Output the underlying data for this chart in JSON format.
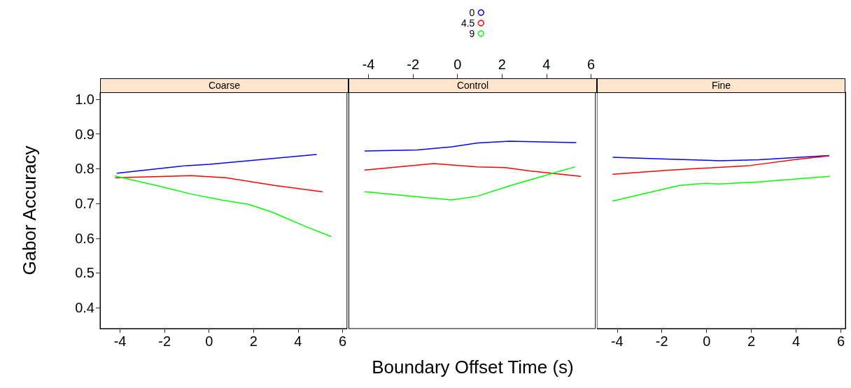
{
  "chart_data": [
    {
      "type": "line",
      "title": "Coarse",
      "ylabel": "Gabor Accuracy",
      "xlim": [
        -4.9,
        6.2
      ],
      "xticks": [
        -4,
        -2,
        0,
        2,
        4,
        6
      ],
      "ylim": [
        0.34,
        1.02
      ],
      "yticks": [
        0.4,
        0.5,
        0.6,
        0.7,
        0.8,
        0.9,
        {
          "value": 1,
          "label": "1.0"
        }
      ],
      "grid": false,
      "marker": "none",
      "series": [
        {
          "color": "#0000ff",
          "x": [
            -4.13,
            -1.0,
            0.03,
            4.82
          ],
          "values": [
            0.787,
            0.809,
            0.813,
            0.841
          ]
        },
        {
          "color": "#ff0000",
          "x": [
            -4.2,
            -0.8,
            0.76,
            2.95,
            5.08
          ],
          "values": [
            0.774,
            0.78,
            0.774,
            0.752,
            0.734
          ]
        },
        {
          "color": "#00ff00",
          "x": [
            -4.22,
            -2.05,
            -0.8,
            0.55,
            1.8,
            2.84,
            4.41,
            5.48
          ],
          "values": [
            0.779,
            0.747,
            0.727,
            0.71,
            0.697,
            0.675,
            0.632,
            0.605
          ]
        }
      ]
    },
    {
      "type": "line",
      "title": "Control",
      "xlabel": "Boundary Offset Time (s)",
      "xlim": [
        -4.9,
        6.2
      ],
      "xticks": [
        -4,
        -2,
        0,
        2,
        4,
        6
      ],
      "ylim": [
        0.34,
        1.02
      ],
      "tick_labels": "x",
      "grid": false,
      "marker": "none",
      "legend": "top",
      "series": [
        {
          "name": "0",
          "color": "#0000ff",
          "x": [
            -4.16,
            -1.81,
            -0.25,
            0.9,
            2.35,
            5.32
          ],
          "values": [
            0.851,
            0.854,
            0.863,
            0.874,
            0.879,
            0.875
          ]
        },
        {
          "name": "4.5",
          "color": "#ff0000",
          "x": [
            -4.16,
            -1.08,
            0.9,
            2.15,
            3.19,
            5.53
          ],
          "values": [
            0.796,
            0.815,
            0.805,
            0.803,
            0.794,
            0.778
          ]
        },
        {
          "name": "9",
          "color": "#00ff00",
          "x": [
            -4.16,
            -1.81,
            -0.25,
            0.9,
            2.35,
            4.23,
            5.27
          ],
          "values": [
            0.734,
            0.719,
            0.71,
            0.721,
            0.751,
            0.786,
            0.805
          ]
        }
      ]
    },
    {
      "type": "line",
      "title": "Fine",
      "xlim": [
        -4.9,
        6.2
      ],
      "xticks": [
        -4,
        -2,
        0,
        2,
        4,
        6
      ],
      "ylim": [
        0.34,
        1.02
      ],
      "tick_labels": "x",
      "grid": false,
      "marker": "none",
      "series": [
        {
          "color": "#0000ff",
          "x": [
            -4.18,
            -1.83,
            0.56,
            2.33,
            5.46
          ],
          "values": [
            0.833,
            0.828,
            0.823,
            0.826,
            0.838
          ]
        },
        {
          "color": "#ff0000",
          "x": [
            -4.18,
            -1.83,
            -0.27,
            1.92,
            3.89,
            5.46
          ],
          "values": [
            0.784,
            0.795,
            0.801,
            0.809,
            0.826,
            0.837
          ]
        },
        {
          "color": "#00ff00",
          "x": [
            -4.19,
            -1.21,
            -0.06,
            0.53,
            2.33,
            5.49
          ],
          "values": [
            0.707,
            0.752,
            0.758,
            0.756,
            0.762,
            0.778
          ]
        }
      ]
    }
  ]
}
